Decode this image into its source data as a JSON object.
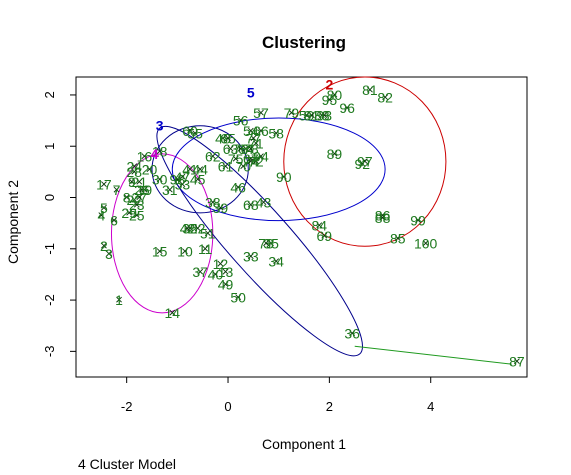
{
  "chart_data": {
    "type": "scatter",
    "title": "Clustering",
    "xlabel": "Component 1",
    "ylabel": "Component 2",
    "footnote": "4 Cluster Model",
    "xlim": [
      -3.0,
      5.9
    ],
    "ylim": [
      -3.5,
      2.35
    ],
    "xticks": [
      -2,
      0,
      2,
      4
    ],
    "yticks": [
      -3,
      -2,
      -1,
      0,
      1,
      2
    ],
    "grid": false,
    "ellipses": [
      {
        "label": "2",
        "color": "#cc0000",
        "cx": 2.7,
        "cy": 0.7,
        "rx": 1.6,
        "ry": 1.65
      },
      {
        "label": "3",
        "color": "#00008b",
        "cx": -0.55,
        "cy": 0.55,
        "rx": 0.95,
        "ry": 0.85
      },
      {
        "label": "4",
        "color": "#cc00cc",
        "cx": -1.3,
        "cy": -0.7,
        "rx": 1.0,
        "ry": 1.55
      },
      {
        "label": "5",
        "color": "#0000cc",
        "cx": 1.0,
        "cy": 0.55,
        "rx": 2.1,
        "ry": 1.0
      }
    ],
    "big_ellipse": {
      "color": "#00008b",
      "x1": -1.35,
      "y1": 1.35,
      "x2": 2.6,
      "y2": -3.05,
      "half_minor": 0.62
    },
    "cluster_labels": [
      {
        "text": "2",
        "x": 2.0,
        "y": 2.2,
        "color": "#cc0000"
      },
      {
        "text": "3",
        "x": -1.35,
        "y": 1.4,
        "color": "#0000cc"
      },
      {
        "text": "4",
        "x": -1.45,
        "y": 0.85,
        "color": "#cc00cc"
      },
      {
        "text": "5",
        "x": 0.45,
        "y": 2.05,
        "color": "#0000cc"
      }
    ],
    "connector": {
      "color": "#1f9a1f",
      "x1": 2.5,
      "y1": -2.9,
      "x2": 5.6,
      "y2": -3.25
    },
    "points": [
      {
        "label": "1",
        "x": -2.15,
        "y": -2.0
      },
      {
        "label": "2",
        "x": -2.45,
        "y": -0.95
      },
      {
        "label": "3",
        "x": -2.35,
        "y": -1.1
      },
      {
        "label": "4",
        "x": -2.5,
        "y": -0.35
      },
      {
        "label": "5",
        "x": -2.45,
        "y": -0.2
      },
      {
        "label": "6",
        "x": -2.25,
        "y": -0.45
      },
      {
        "label": "7",
        "x": -2.2,
        "y": 0.15
      },
      {
        "label": "8",
        "x": -2.0,
        "y": 0.0
      },
      {
        "label": "9",
        "x": -1.9,
        "y": 0.3
      },
      {
        "label": "10",
        "x": -0.85,
        "y": -1.05
      },
      {
        "label": "11",
        "x": -0.45,
        "y": -1.0
      },
      {
        "label": "12",
        "x": -0.15,
        "y": -1.3
      },
      {
        "label": "13",
        "x": -0.05,
        "y": -1.45
      },
      {
        "label": "14",
        "x": -1.1,
        "y": -2.25
      },
      {
        "label": "15",
        "x": -1.35,
        "y": -1.05
      },
      {
        "label": "16",
        "x": -1.65,
        "y": 0.8
      },
      {
        "label": "17",
        "x": -2.45,
        "y": 0.25
      },
      {
        "label": "18",
        "x": -1.35,
        "y": 0.9
      },
      {
        "label": "19",
        "x": -1.65,
        "y": 0.15
      },
      {
        "label": "20",
        "x": -1.55,
        "y": 0.55
      },
      {
        "label": "21",
        "x": -1.75,
        "y": 0.3
      },
      {
        "label": "22",
        "x": -1.85,
        "y": -0.05
      },
      {
        "label": "23",
        "x": -1.8,
        "y": -0.15
      },
      {
        "label": "24",
        "x": -1.85,
        "y": 0.6
      },
      {
        "label": "25",
        "x": -1.8,
        "y": -0.35
      },
      {
        "label": "26",
        "x": -1.7,
        "y": 0.15
      },
      {
        "label": "27",
        "x": -1.75,
        "y": 0.0
      },
      {
        "label": "28",
        "x": -1.85,
        "y": 0.5
      },
      {
        "label": "29",
        "x": -1.95,
        "y": -0.3
      },
      {
        "label": "30",
        "x": -1.35,
        "y": 0.35
      },
      {
        "label": "31",
        "x": -1.15,
        "y": 0.15
      },
      {
        "label": "32",
        "x": -0.75,
        "y": -0.6
      },
      {
        "label": "33",
        "x": 0.45,
        "y": -1.15
      },
      {
        "label": "34",
        "x": 0.95,
        "y": -1.25
      },
      {
        "label": "35",
        "x": 0.85,
        "y": -0.9
      },
      {
        "label": "36",
        "x": 2.45,
        "y": -2.65
      },
      {
        "label": "37",
        "x": -0.55,
        "y": -1.45
      },
      {
        "label": "38",
        "x": -0.3,
        "y": -0.1
      },
      {
        "label": "39",
        "x": -0.15,
        "y": -0.2
      },
      {
        "label": "40",
        "x": -0.25,
        "y": -1.5
      },
      {
        "label": "41",
        "x": -0.75,
        "y": 0.55
      },
      {
        "label": "42",
        "x": -0.8,
        "y": -0.6
      },
      {
        "label": "43",
        "x": 0.7,
        "y": -0.1
      },
      {
        "label": "44",
        "x": -0.55,
        "y": 0.55
      },
      {
        "label": "45",
        "x": -0.6,
        "y": 0.35
      },
      {
        "label": "46",
        "x": 0.2,
        "y": 0.2
      },
      {
        "label": "47",
        "x": -0.9,
        "y": 0.4
      },
      {
        "label": "48",
        "x": -0.1,
        "y": 1.15
      },
      {
        "label": "49",
        "x": -0.05,
        "y": -1.7
      },
      {
        "label": "50",
        "x": 0.2,
        "y": -1.95
      },
      {
        "label": "51",
        "x": -0.4,
        "y": -0.7
      },
      {
        "label": "52",
        "x": -0.6,
        "y": -0.6
      },
      {
        "label": "53",
        "x": -0.9,
        "y": 0.25
      },
      {
        "label": "54",
        "x": 0.45,
        "y": 1.3
      },
      {
        "label": "55",
        "x": -0.65,
        "y": 1.25
      },
      {
        "label": "56",
        "x": 0.25,
        "y": 1.5
      },
      {
        "label": "57",
        "x": 0.65,
        "y": 1.65
      },
      {
        "label": "58",
        "x": 0.95,
        "y": 1.25
      },
      {
        "label": "59",
        "x": 1.55,
        "y": 1.6
      },
      {
        "label": "60",
        "x": -0.75,
        "y": 1.3
      },
      {
        "label": "61",
        "x": -0.05,
        "y": 0.6
      },
      {
        "label": "62",
        "x": -0.3,
        "y": 0.8
      },
      {
        "label": "63",
        "x": 0.05,
        "y": 0.95
      },
      {
        "label": "64",
        "x": 0.35,
        "y": 0.95
      },
      {
        "label": "65",
        "x": 0.0,
        "y": 1.15
      },
      {
        "label": "66",
        "x": 0.65,
        "y": 1.3
      },
      {
        "label": "67",
        "x": 0.45,
        "y": 0.75
      },
      {
        "label": "68",
        "x": 0.45,
        "y": -0.15
      },
      {
        "label": "69",
        "x": 1.9,
        "y": -0.75
      },
      {
        "label": "70",
        "x": 0.3,
        "y": 0.6
      },
      {
        "label": "71",
        "x": 0.55,
        "y": 1.05
      },
      {
        "label": "72",
        "x": 0.55,
        "y": 0.7
      },
      {
        "label": "73",
        "x": 0.75,
        "y": -0.9
      },
      {
        "label": "74",
        "x": 0.45,
        "y": 0.7
      },
      {
        "label": "75",
        "x": 0.15,
        "y": 0.75
      },
      {
        "label": "76",
        "x": 0.25,
        "y": 0.95
      },
      {
        "label": "77",
        "x": 0.5,
        "y": 1.15
      },
      {
        "label": "78",
        "x": 0.45,
        "y": 0.95
      },
      {
        "label": "79",
        "x": 1.25,
        "y": 1.65
      },
      {
        "label": "80",
        "x": 2.1,
        "y": 2.0
      },
      {
        "label": "81",
        "x": 2.8,
        "y": 2.1
      },
      {
        "label": "82",
        "x": 3.1,
        "y": 1.95
      },
      {
        "label": "83",
        "x": 1.85,
        "y": 1.6
      },
      {
        "label": "84",
        "x": 1.8,
        "y": -0.55
      },
      {
        "label": "85",
        "x": 3.35,
        "y": -0.8
      },
      {
        "label": "86",
        "x": 3.05,
        "y": -0.35
      },
      {
        "label": "87",
        "x": 5.7,
        "y": -3.2
      },
      {
        "label": "88",
        "x": 3.05,
        "y": -0.4
      },
      {
        "label": "89",
        "x": 2.1,
        "y": 0.85
      },
      {
        "label": "90",
        "x": 1.1,
        "y": 0.4
      },
      {
        "label": "91",
        "x": 1.65,
        "y": 1.6
      },
      {
        "label": "92",
        "x": 2.65,
        "y": 0.65
      },
      {
        "label": "93",
        "x": 1.9,
        "y": 1.6
      },
      {
        "label": "94",
        "x": 0.65,
        "y": 0.8
      },
      {
        "label": "95",
        "x": 2.0,
        "y": 1.9
      },
      {
        "label": "96",
        "x": 2.35,
        "y": 1.75
      },
      {
        "label": "97",
        "x": 2.7,
        "y": 0.7
      },
      {
        "label": "98",
        "x": -1.0,
        "y": 0.35
      },
      {
        "label": "99",
        "x": 3.75,
        "y": -0.45
      },
      {
        "label": "100",
        "x": 3.9,
        "y": -0.9
      }
    ]
  }
}
